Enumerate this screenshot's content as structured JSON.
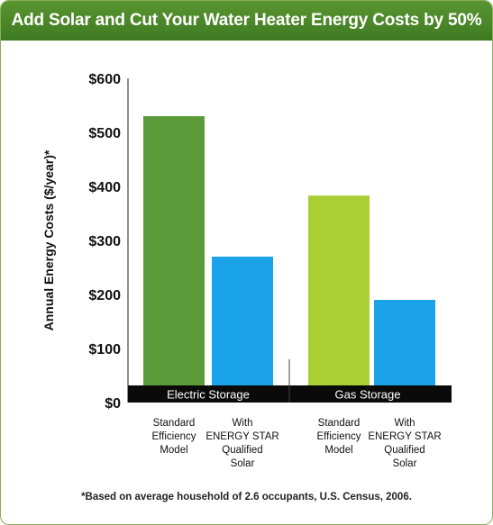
{
  "chart_data": {
    "type": "bar",
    "title": "Add Solar and Cut Your Water Heater Energy Costs by 50%",
    "ylabel": "Annual Energy Costs ($/year)*",
    "ylim": [
      0,
      600
    ],
    "yticks": [
      "$0",
      "$100",
      "$200",
      "$300",
      "$400",
      "$500",
      "$600"
    ],
    "groups": [
      {
        "label": "Electric Storage",
        "bars": [
          {
            "label": "Standard\nEfficiency\nModel",
            "value": 530,
            "color": "#5b9b3a"
          },
          {
            "label": "With\nENERGY STAR\nQualified\nSolar",
            "value": 270,
            "color": "#1aa3e8"
          }
        ]
      },
      {
        "label": "Gas Storage",
        "bars": [
          {
            "label": "Standard\nEfficiency\nModel",
            "value": 383,
            "color": "#aacf35"
          },
          {
            "label": "With\nENERGY STAR\nQualified\nSolar",
            "value": 190,
            "color": "#1aa3e8"
          }
        ]
      }
    ],
    "footnote": "*Based on average household of 2.6 occupants, U.S. Census, 2006."
  }
}
